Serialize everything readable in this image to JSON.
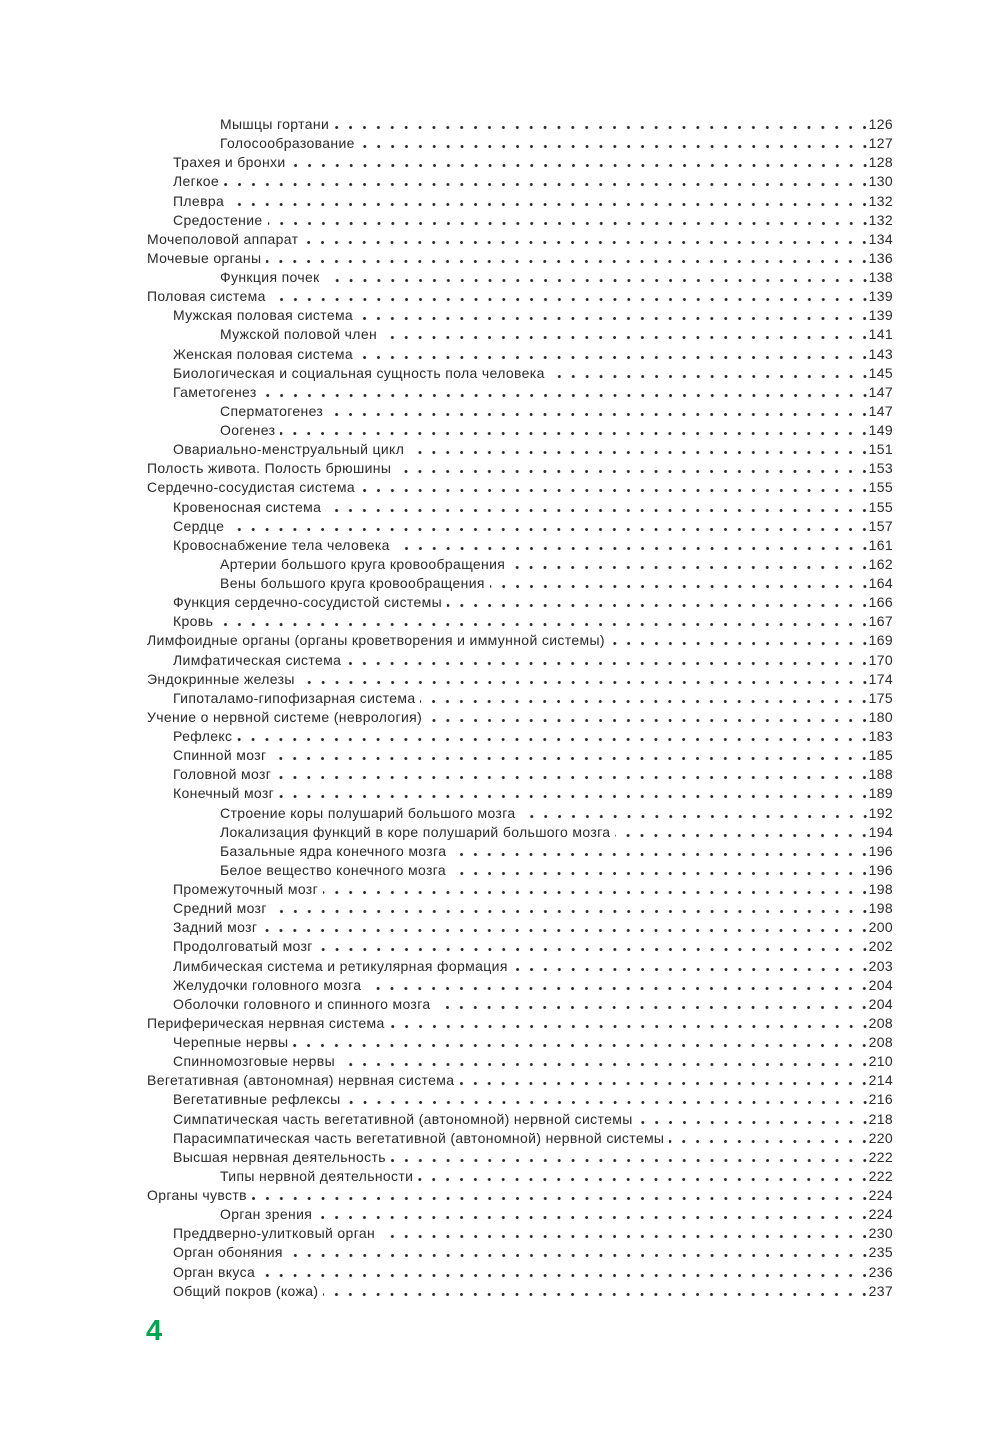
{
  "page": {
    "folio": "4",
    "ink_color": "#2a2a2a",
    "accent_green": "#00a551"
  },
  "toc": {
    "entries": [
      {
        "label": "Мышцы гортани",
        "page": "126",
        "level": 2
      },
      {
        "label": "Голосообразование",
        "page": "127",
        "level": 2
      },
      {
        "label": "Трахея и бронхи",
        "page": "128",
        "level": 1
      },
      {
        "label": "Легкое",
        "page": "130",
        "level": 1
      },
      {
        "label": "Плевра",
        "page": "132",
        "level": 1
      },
      {
        "label": "Средостение",
        "page": "132",
        "level": 1
      },
      {
        "label": "Мочеполовой аппарат",
        "page": "134",
        "level": 0
      },
      {
        "label": "Мочевые органы",
        "page": "136",
        "level": 0
      },
      {
        "label": "Функция почек",
        "page": "138",
        "level": 2
      },
      {
        "label": "Половая система",
        "page": "139",
        "level": 0
      },
      {
        "label": "Мужская половая система",
        "page": "139",
        "level": 1
      },
      {
        "label": "Мужской половой член",
        "page": "141",
        "level": 2
      },
      {
        "label": "Женская половая система",
        "page": "143",
        "level": 1
      },
      {
        "label": "Биологическая и социальная сущность пола человека",
        "page": "145",
        "level": 1
      },
      {
        "label": "Гаметогенез",
        "page": "147",
        "level": 1
      },
      {
        "label": "Сперматогенез",
        "page": "147",
        "level": 2
      },
      {
        "label": "Оогенез",
        "page": "149",
        "level": 2
      },
      {
        "label": "Овариально-менструальный цикл",
        "page": "151",
        "level": 1
      },
      {
        "label": "Полость живота. Полость брюшины",
        "page": "153",
        "level": 0
      },
      {
        "label": "Сердечно-сосудистая система",
        "page": "155",
        "level": 0
      },
      {
        "label": "Кровеносная система",
        "page": "155",
        "level": 1
      },
      {
        "label": "Сердце",
        "page": "157",
        "level": 1
      },
      {
        "label": "Кровоснабжение тела человека",
        "page": "161",
        "level": 1
      },
      {
        "label": "Артерии большого круга кровообращения",
        "page": "162",
        "level": 2
      },
      {
        "label": "Вены большого круга кровообращения",
        "page": "164",
        "level": 2
      },
      {
        "label": "Функция сердечно-сосудистой системы",
        "page": "166",
        "level": 1
      },
      {
        "label": "Кровь",
        "page": "167",
        "level": 1
      },
      {
        "label": "Лимфоидные органы (органы кроветворения и иммунной системы)",
        "page": "169",
        "level": 0
      },
      {
        "label": "Лимфатическая система",
        "page": "170",
        "level": 1
      },
      {
        "label": "Эндокринные железы",
        "page": "174",
        "level": 0
      },
      {
        "label": "Гипоталамо-гипофизарная система",
        "page": "175",
        "level": 1
      },
      {
        "label": "Учение о нервной системе (неврология)",
        "page": "180",
        "level": 0
      },
      {
        "label": "Рефлекс",
        "page": "183",
        "level": 1
      },
      {
        "label": "Спинной мозг",
        "page": "185",
        "level": 1
      },
      {
        "label": "Головной мозг",
        "page": "188",
        "level": 1
      },
      {
        "label": "Конечный мозг",
        "page": "189",
        "level": 1
      },
      {
        "label": "Строение коры полушарий большого мозга",
        "page": "192",
        "level": 2
      },
      {
        "label": "Локализация функций в коре полушарий большого мозга",
        "page": "194",
        "level": 2
      },
      {
        "label": "Базальные ядра конечного мозга",
        "page": "196",
        "level": 2
      },
      {
        "label": "Белое вещество конечного мозга",
        "page": "196",
        "level": 2
      },
      {
        "label": "Промежуточный мозг",
        "page": "198",
        "level": 1
      },
      {
        "label": "Средний мозг",
        "page": "198",
        "level": 1
      },
      {
        "label": "Задний мозг",
        "page": "200",
        "level": 1
      },
      {
        "label": "Продолговатый мозг",
        "page": "202",
        "level": 1
      },
      {
        "label": "Лимбическая система и ретикулярная формация",
        "page": "203",
        "level": 1
      },
      {
        "label": "Желудочки головного мозга",
        "page": "204",
        "level": 1
      },
      {
        "label": "Оболочки головного и спинного мозга",
        "page": "204",
        "level": 1
      },
      {
        "label": "Периферическая нервная система",
        "page": "208",
        "level": 0
      },
      {
        "label": "Черепные нервы",
        "page": "208",
        "level": 1
      },
      {
        "label": "Спинномозговые нервы",
        "page": "210",
        "level": 1
      },
      {
        "label": "Вегетативная (автономная) нервная система",
        "page": "214",
        "level": 0
      },
      {
        "label": "Вегетативные рефлексы",
        "page": "216",
        "level": 1
      },
      {
        "label": "Симпатическая часть вегетативной (автономной) нервной системы",
        "page": "218",
        "level": 1
      },
      {
        "label": "Парасимпатическая часть вегетативной (автономной) нервной системы",
        "page": "220",
        "level": 1
      },
      {
        "label": "Высшая нервная деятельность",
        "page": "222",
        "level": 1
      },
      {
        "label": "Типы нервной деятельности",
        "page": "222",
        "level": 2
      },
      {
        "label": "Органы чувств",
        "page": "224",
        "level": 0
      },
      {
        "label": "Орган зрения",
        "page": "224",
        "level": 2
      },
      {
        "label": "Преддверно-улитковый орган",
        "page": "230",
        "level": 1
      },
      {
        "label": "Орган обоняния",
        "page": "235",
        "level": 1
      },
      {
        "label": "Орган вкуса",
        "page": "236",
        "level": 1
      },
      {
        "label": "Общий покров (кожа)",
        "page": "237",
        "level": 1
      }
    ]
  }
}
